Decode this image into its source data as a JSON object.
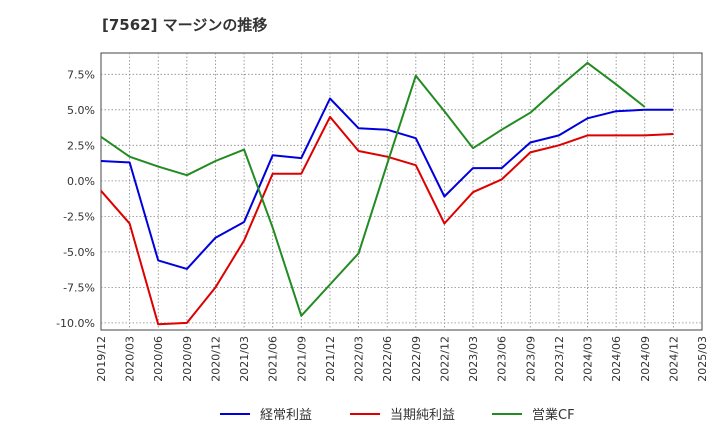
{
  "chart_data": {
    "type": "line",
    "title": "[7562]  マージンの推移",
    "xlabel": "",
    "ylabel": "",
    "x": [
      "2019/12",
      "2020/03",
      "2020/06",
      "2020/09",
      "2020/12",
      "2021/03",
      "2021/06",
      "2021/09",
      "2021/12",
      "2022/03",
      "2022/06",
      "2022/09",
      "2022/12",
      "2023/03",
      "2023/06",
      "2023/09",
      "2023/12",
      "2024/03",
      "2024/06",
      "2024/09",
      "2024/12",
      "2025/03"
    ],
    "ylim": [
      -10.5,
      9.0
    ],
    "yticks": [
      7.5,
      5.0,
      2.5,
      0.0,
      -2.5,
      -5.0,
      -7.5,
      -10.0
    ],
    "ytick_labels": [
      "7.5%",
      "5.0%",
      "2.5%",
      "0.0%",
      "-2.5%",
      "-5.0%",
      "-7.5%",
      "-10.0%"
    ],
    "grid": true,
    "legend_position": "bottom",
    "series": [
      {
        "name": "経常利益",
        "color": "#0000dd",
        "values": [
          1.4,
          1.3,
          -5.6,
          -6.2,
          -4.0,
          -2.9,
          1.8,
          1.6,
          5.8,
          3.7,
          3.6,
          3.0,
          -1.1,
          0.9,
          0.9,
          2.7,
          3.2,
          4.4,
          4.9,
          5.0,
          5.0,
          null
        ]
      },
      {
        "name": "当期純利益",
        "color": "#dd0000",
        "values": [
          -0.7,
          -3.0,
          -10.1,
          -10.0,
          -7.5,
          -4.2,
          0.5,
          0.5,
          4.5,
          2.1,
          1.7,
          1.1,
          -3.0,
          -0.8,
          0.1,
          2.0,
          2.5,
          3.2,
          3.2,
          3.2,
          3.3,
          null
        ]
      },
      {
        "name": "営業CF",
        "color": "#228b22",
        "values": [
          3.1,
          1.7,
          1.0,
          0.4,
          1.4,
          2.2,
          -3.3,
          -9.5,
          -7.3,
          -5.1,
          1.2,
          7.4,
          4.9,
          2.3,
          3.6,
          4.8,
          6.6,
          8.3,
          6.8,
          5.2,
          null,
          null
        ]
      }
    ]
  }
}
